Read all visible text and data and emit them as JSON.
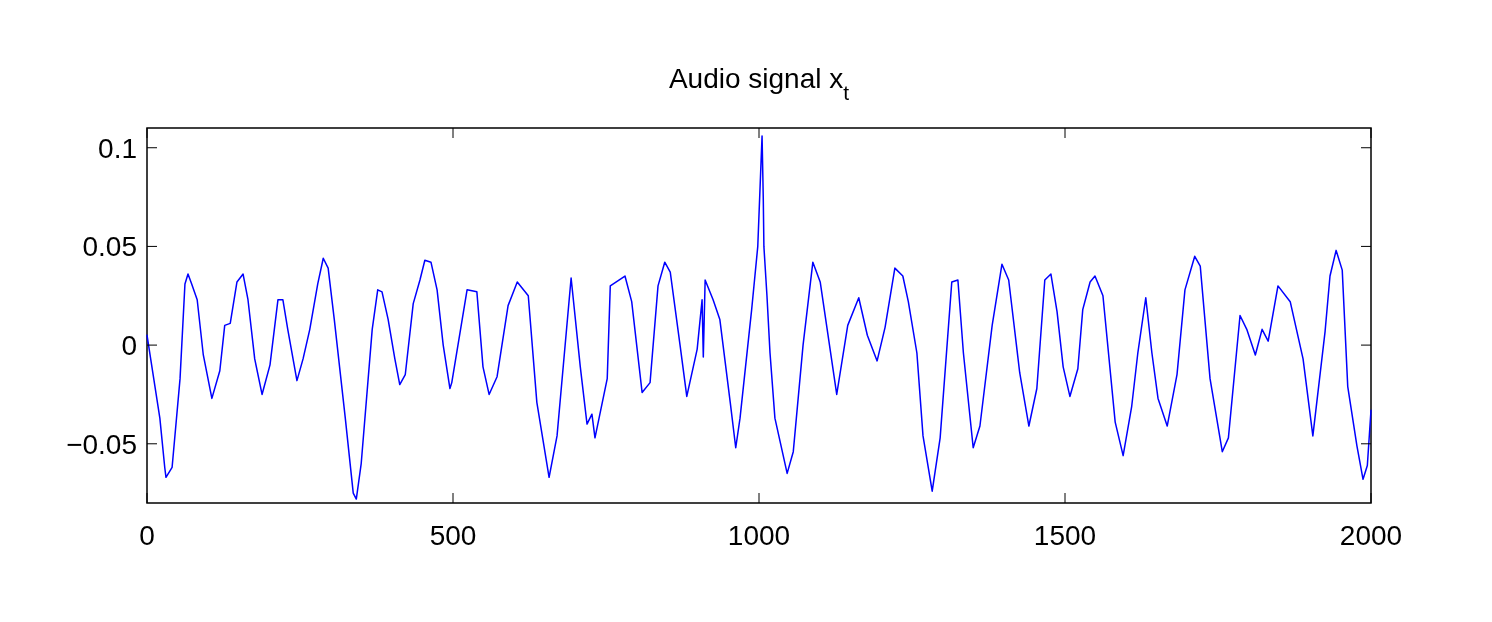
{
  "chart_data": {
    "type": "line",
    "title": "Audio signal x$_{t}$",
    "xlim": [
      0,
      2000
    ],
    "xticks": [
      0,
      500,
      1000,
      1500,
      2000
    ],
    "ylim": [
      -0.08,
      0.11
    ],
    "yticks": [
      {
        "value": -0.05,
        "label": "−0.05"
      },
      0,
      0.05,
      0.1
    ],
    "marker": "none",
    "line_style": "solid",
    "series": [
      {
        "color": "#0000ff",
        "x": [
          0,
          21,
          29,
          31,
          41,
          54,
          62,
          67,
          73,
          82,
          92,
          106,
          119,
          127,
          136,
          147,
          157,
          165,
          176,
          188,
          201,
          214,
          222,
          230,
          245,
          255,
          266,
          279,
          288,
          296,
          306,
          324,
          337,
          342,
          350,
          368,
          377,
          384,
          394,
          405,
          413,
          422,
          435,
          446,
          454,
          464,
          474,
          484,
          495,
          498,
          523,
          539,
          549,
          559,
          572,
          590,
          605,
          623,
          637,
          657,
          670,
          693,
          708,
          719,
          727,
          732,
          752,
          757,
          781,
          792,
          809,
          822,
          835,
          846,
          855,
          871,
          882,
          899,
          907,
          909,
          912,
          925,
          936,
          953,
          962,
          969,
          988,
          998,
          1005,
          1007,
          1008,
          1013,
          1018,
          1026,
          1046,
          1056,
          1072,
          1088,
          1100,
          1127,
          1145,
          1163,
          1177,
          1193,
          1206,
          1222,
          1235,
          1244,
          1258,
          1268,
          1283,
          1296,
          1315,
          1325,
          1334,
          1350,
          1361,
          1381,
          1397,
          1408,
          1426,
          1441,
          1454,
          1467,
          1477,
          1487,
          1497,
          1508,
          1521,
          1529,
          1541,
          1549,
          1562,
          1582,
          1595,
          1609,
          1619,
          1632,
          1642,
          1652,
          1667,
          1683,
          1696,
          1712,
          1721,
          1737,
          1757,
          1767,
          1786,
          1797,
          1811,
          1822,
          1832,
          1848,
          1868,
          1889,
          1905,
          1925,
          1933,
          1943,
          1953,
          1962,
          1977,
          1987,
          1994,
          2000
        ],
        "values": [
          0.005,
          -0.037,
          -0.062,
          -0.067,
          -0.062,
          -0.017,
          0.031,
          0.036,
          0.031,
          0.023,
          -0.005,
          -0.027,
          -0.013,
          0.01,
          0.011,
          0.032,
          0.036,
          0.023,
          -0.007,
          -0.025,
          -0.01,
          0.023,
          0.023,
          0.008,
          -0.018,
          -0.007,
          0.008,
          0.031,
          0.044,
          0.039,
          0.013,
          -0.037,
          -0.075,
          -0.078,
          -0.06,
          0.008,
          0.028,
          0.027,
          0.013,
          -0.007,
          -0.02,
          -0.015,
          0.021,
          0.033,
          0.043,
          0.042,
          0.028,
          0.0,
          -0.022,
          -0.019,
          0.028,
          0.027,
          -0.011,
          -0.025,
          -0.016,
          0.02,
          0.032,
          0.025,
          -0.029,
          -0.067,
          -0.046,
          0.034,
          -0.011,
          -0.04,
          -0.035,
          -0.047,
          -0.017,
          0.03,
          0.035,
          0.022,
          -0.024,
          -0.019,
          0.03,
          0.042,
          0.037,
          0.0,
          -0.026,
          -0.002,
          0.023,
          -0.006,
          0.033,
          0.023,
          0.013,
          -0.029,
          -0.052,
          -0.037,
          0.018,
          0.05,
          0.106,
          0.074,
          0.05,
          0.025,
          -0.004,
          -0.037,
          -0.065,
          -0.054,
          0.0,
          0.042,
          0.032,
          -0.025,
          0.01,
          0.024,
          0.005,
          -0.008,
          0.009,
          0.039,
          0.035,
          0.022,
          -0.004,
          -0.046,
          -0.074,
          -0.047,
          0.032,
          0.033,
          -0.004,
          -0.052,
          -0.041,
          0.01,
          0.041,
          0.033,
          -0.014,
          -0.041,
          -0.022,
          0.033,
          0.036,
          0.017,
          -0.011,
          -0.026,
          -0.012,
          0.018,
          0.032,
          0.035,
          0.025,
          -0.039,
          -0.056,
          -0.031,
          -0.004,
          0.024,
          -0.004,
          -0.027,
          -0.041,
          -0.015,
          0.028,
          0.045,
          0.04,
          -0.017,
          -0.054,
          -0.047,
          0.015,
          0.008,
          -0.005,
          0.008,
          0.002,
          0.03,
          0.022,
          -0.007,
          -0.046,
          0.007,
          0.035,
          0.048,
          0.038,
          -0.021,
          -0.051,
          -0.068,
          -0.061,
          -0.033
        ]
      }
    ]
  }
}
